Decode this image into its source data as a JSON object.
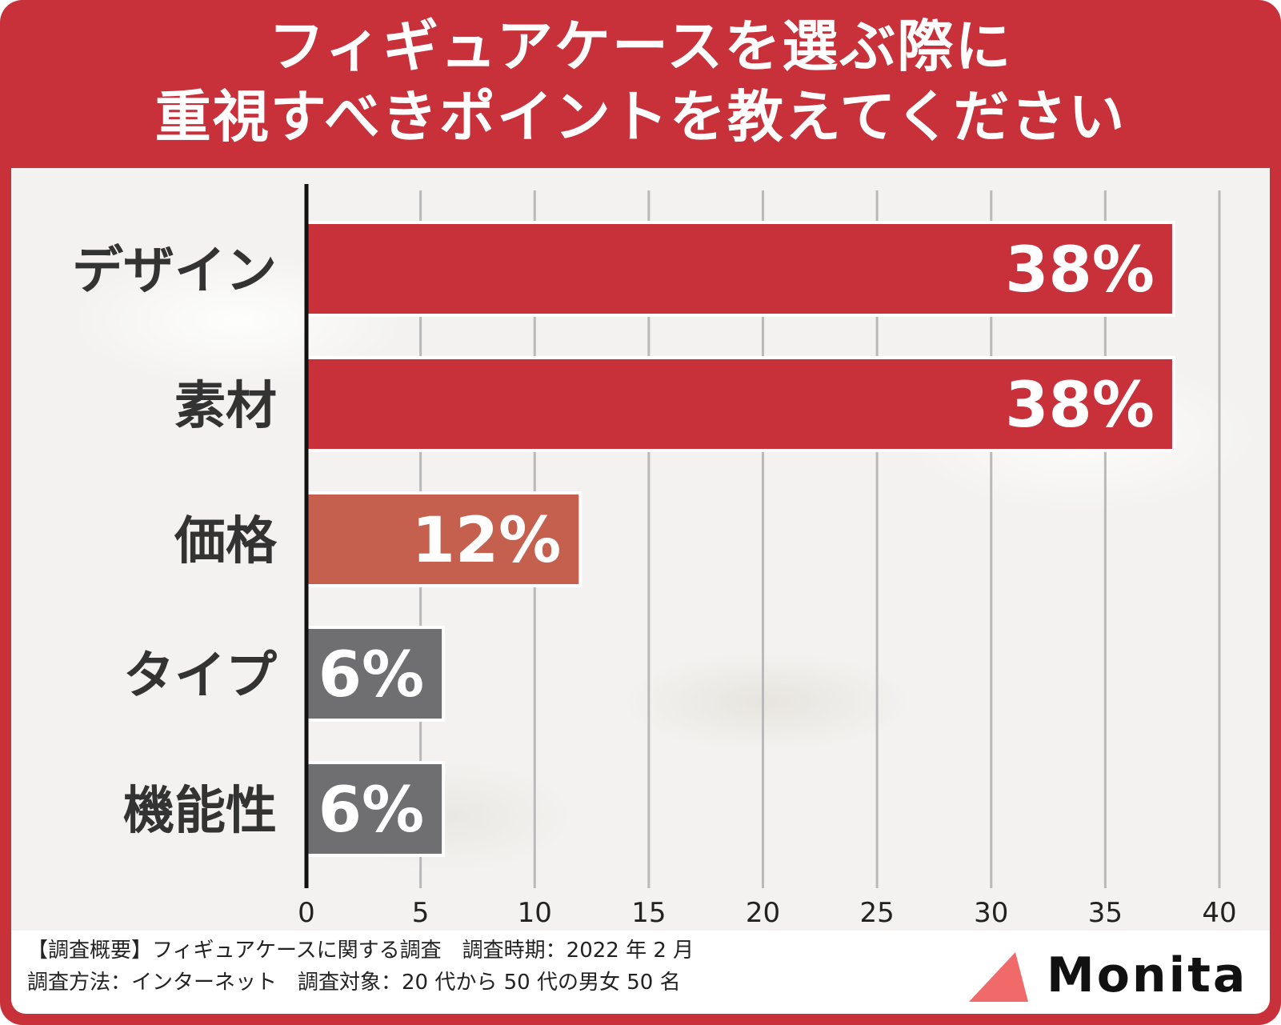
{
  "title": {
    "line1": "フィギュアケースを選ぶ際に",
    "line2": "重視すべきポイントを教えてください"
  },
  "chart_data": {
    "type": "bar",
    "orientation": "horizontal",
    "categories": [
      "デザイン",
      "素材",
      "価格",
      "タイプ",
      "機能性"
    ],
    "values": [
      38,
      38,
      12,
      6,
      6
    ],
    "value_labels": [
      "38%",
      "38%",
      "12%",
      "6%",
      "6%"
    ],
    "bar_colors": [
      "#c8303a",
      "#c8303a",
      "#c5604f",
      "#6f6e70",
      "#6f6e70"
    ],
    "xlim": [
      0,
      40
    ],
    "xticks": [
      0,
      5,
      10,
      15,
      20,
      25,
      30,
      35,
      40
    ],
    "grid": true,
    "xlabel": "",
    "ylabel": ""
  },
  "footer": {
    "line1": "【調査概要】フィギュアケースに関する調査　調査時期：2022 年 2 月",
    "line2": "調査方法：インターネット　調査対象：20 代から 50 代の男女 50 名"
  },
  "logo": {
    "text": "Monita",
    "mark_color": "#f06a6a",
    "mark_icon": "triangle-icon"
  }
}
